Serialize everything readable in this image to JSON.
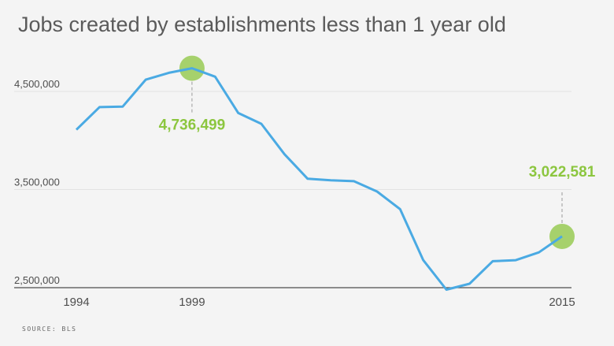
{
  "chart_data": {
    "type": "line",
    "title": "Jobs created by establishments less than 1 year old",
    "source": "SOURCE: BLS",
    "x": [
      1994,
      1995,
      1996,
      1997,
      1998,
      1999,
      2000,
      2001,
      2002,
      2003,
      2004,
      2005,
      2006,
      2007,
      2008,
      2009,
      2010,
      2011,
      2012,
      2013,
      2014,
      2015
    ],
    "x_tick_labels": [
      "1994",
      "1999",
      "2015"
    ],
    "y_ticks": [
      2500000,
      3500000,
      4500000
    ],
    "y_tick_labels": [
      "2,500,000",
      "3,500,000",
      "4,500,000"
    ],
    "ylim": [
      2500000,
      4950000
    ],
    "xlim": [
      1994,
      2015
    ],
    "series": [
      {
        "values": [
          4110000,
          4340000,
          4345000,
          4620000,
          4690000,
          4736499,
          4650000,
          4280000,
          4170000,
          3860000,
          3610000,
          3595000,
          3585000,
          3480000,
          3300000,
          2780000,
          2480000,
          2540000,
          2770000,
          2780000,
          2860000,
          3022581
        ]
      }
    ],
    "annotations": [
      {
        "x": 1999,
        "y": 4736499,
        "label": "4,736,499"
      },
      {
        "x": 2015,
        "y": 3022581,
        "label": "3,022,581"
      }
    ],
    "grid": true,
    "colors": {
      "line": "#4aaae3",
      "highlight": "#8cc63f",
      "grid": "#e2e2e2",
      "axis": "#4d4d4d"
    }
  }
}
